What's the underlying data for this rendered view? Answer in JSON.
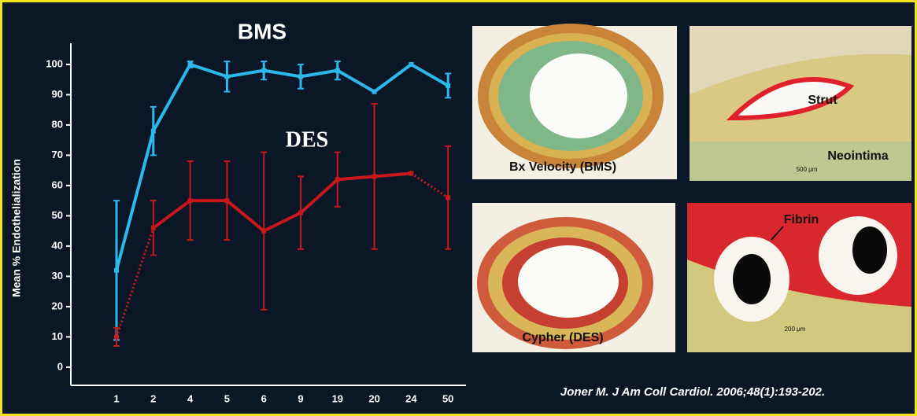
{
  "chart_data": {
    "type": "line",
    "ylabel": "Mean % Endothelialization",
    "categories": [
      "1",
      "2",
      "4",
      "5",
      "6",
      "9",
      "19",
      "20",
      "24",
      "50"
    ],
    "series": [
      {
        "name": "BMS",
        "color": "#2bb8ea",
        "values": [
          32,
          78,
          100,
          96,
          98,
          96,
          98,
          91,
          100,
          93
        ],
        "errors": [
          23,
          8,
          1,
          5,
          3,
          4,
          3,
          0,
          0,
          4
        ]
      },
      {
        "name": "DES",
        "color": "#c8181c",
        "values": [
          10,
          46,
          55,
          55,
          45,
          51,
          62,
          63,
          64,
          56
        ],
        "errors": [
          3,
          9,
          13,
          13,
          26,
          12,
          9,
          24,
          0,
          17
        ],
        "dotted_segments": [
          0,
          8
        ]
      }
    ],
    "ylim": [
      -6,
      107
    ],
    "yticks": [
      0,
      10,
      20,
      30,
      40,
      50,
      60,
      70,
      80,
      90,
      100
    ]
  },
  "panels": [
    {
      "labels": [
        "Bx Velocity (BMS)"
      ]
    },
    {
      "labels": [
        "Strut",
        "Neointima",
        "500 μm"
      ]
    },
    {
      "labels": [
        "Cypher (DES)"
      ]
    },
    {
      "labels": [
        "Fibrin",
        "200 μm"
      ]
    }
  ],
  "citation": "Joner M. J Am Coll Cardiol. 2006;48(1):193-202."
}
